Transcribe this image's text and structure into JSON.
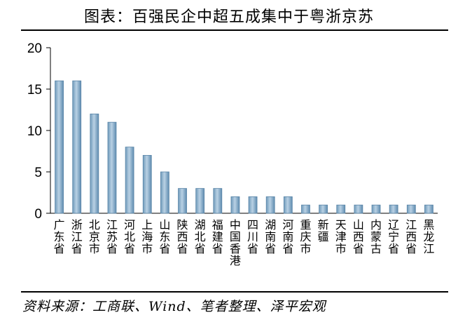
{
  "header": {
    "title": "图表：百强民企中超五成集中于粤浙京苏"
  },
  "footer": {
    "source": "资料来源：工商联、Wind、笔者整理、泽平宏观"
  },
  "chart_data": {
    "type": "bar",
    "title": "图表：百强民企中超五成集中于粤浙京苏",
    "categories": [
      "广东省",
      "浙江省",
      "北京市",
      "江苏省",
      "河北省",
      "上海市",
      "山东省",
      "陕西省",
      "湖北省",
      "福建省",
      "中国香港",
      "四川省",
      "湖南省",
      "河南省",
      "重庆市",
      "新疆",
      "天津市",
      "山西省",
      "内蒙古",
      "辽宁省",
      "江西省",
      "黑龙江"
    ],
    "values": [
      16,
      16,
      12,
      11,
      8,
      7,
      5,
      3,
      3,
      3,
      2,
      2,
      2,
      2,
      1,
      1,
      1,
      1,
      1,
      1,
      1,
      1
    ],
    "ylim": [
      0,
      20
    ],
    "yticks": [
      0,
      5,
      10,
      15,
      20
    ],
    "xlabel": "",
    "ylabel": "",
    "grid": false,
    "bar_color": "#7fa7c7",
    "bar_edge_color": "#5b86a8"
  }
}
